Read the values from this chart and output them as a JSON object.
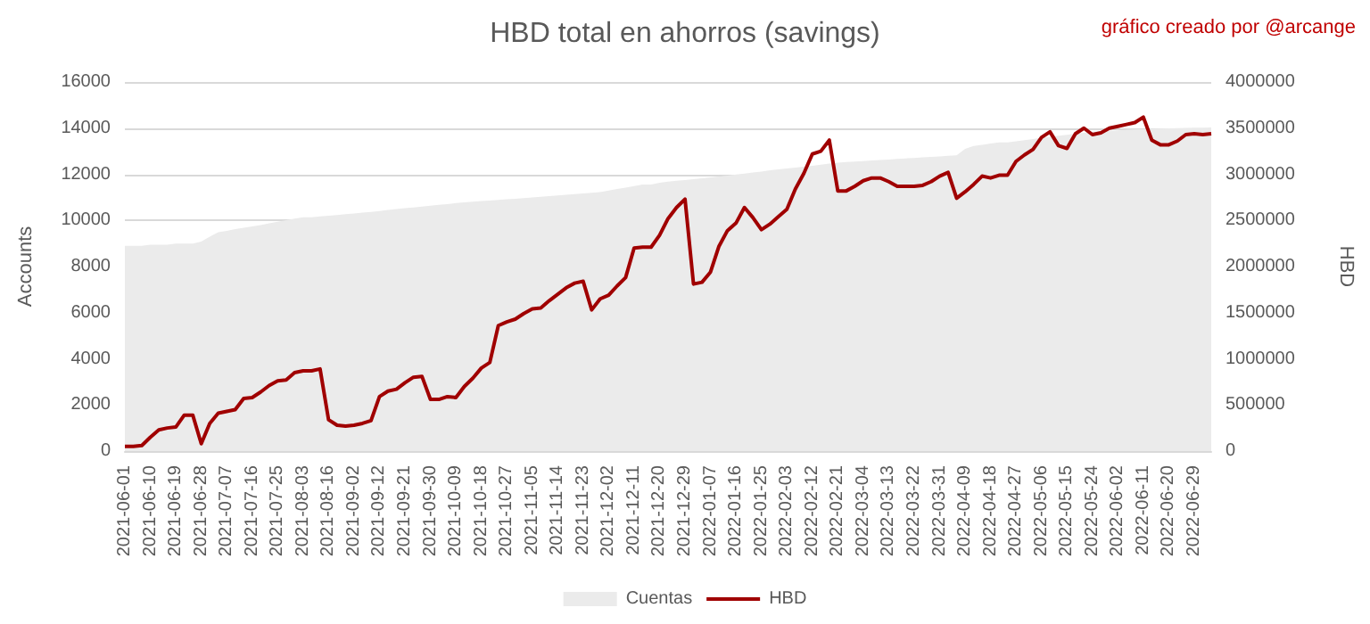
{
  "chart_data": {
    "type": "line",
    "title": "HBD total en ahorros (savings)",
    "annotations": [
      "gráfico creado por @arcange"
    ],
    "ylabel": "Accounts",
    "y2label": "HBD",
    "categories": [
      "2021-06-01",
      null,
      null,
      "2021-06-10",
      null,
      null,
      "2021-06-19",
      null,
      null,
      "2021-06-28",
      null,
      null,
      "2021-07-07",
      null,
      null,
      "2021-07-16",
      null,
      null,
      "2021-07-25",
      null,
      null,
      "2021-08-03",
      null,
      null,
      "2021-08-16",
      null,
      null,
      "2021-09-02",
      null,
      null,
      "2021-09-12",
      null,
      null,
      "2021-09-21",
      null,
      null,
      "2021-09-30",
      null,
      null,
      "2021-10-09",
      null,
      null,
      "2021-10-18",
      null,
      null,
      "2021-10-27",
      null,
      null,
      "2021-11-05",
      null,
      null,
      "2021-11-14",
      null,
      null,
      "2021-11-23",
      null,
      null,
      "2021-12-02",
      null,
      null,
      "2021-12-11",
      null,
      null,
      "2021-12-20",
      null,
      null,
      "2021-12-29",
      null,
      null,
      "2022-01-07",
      null,
      null,
      "2022-01-16",
      null,
      null,
      "2022-01-25",
      null,
      null,
      "2022-02-03",
      null,
      null,
      "2022-02-12",
      null,
      null,
      "2022-02-21",
      null,
      null,
      "2022-03-04",
      null,
      null,
      "2022-03-13",
      null,
      null,
      "2022-03-22",
      null,
      null,
      "2022-03-31",
      null,
      null,
      "2022-04-09",
      null,
      null,
      "2022-04-18",
      null,
      null,
      "2022-04-27",
      null,
      null,
      "2022-05-06",
      null,
      null,
      "2022-05-15",
      null,
      null,
      "2022-05-24",
      null,
      null,
      "2022-06-02",
      null,
      null,
      "2022-06-11",
      null,
      null,
      "2022-06-20",
      null,
      null,
      "2022-06-29",
      null,
      null
    ],
    "series": [
      {
        "name": "Cuentas",
        "type": "area",
        "color": "#ebebeb",
        "values": [
          8900,
          8900,
          8900,
          8950,
          8950,
          8950,
          9000,
          9000,
          9000,
          9080,
          9290,
          9490,
          9550,
          9620,
          9680,
          9740,
          9800,
          9870,
          9940,
          10010,
          10080,
          10140,
          10140,
          10170,
          10200,
          10230,
          10270,
          10300,
          10340,
          10370,
          10410,
          10450,
          10490,
          10530,
          10560,
          10600,
          10640,
          10680,
          10710,
          10750,
          10780,
          10810,
          10840,
          10860,
          10890,
          10920,
          10940,
          10970,
          11000,
          11020,
          11050,
          11080,
          11110,
          11140,
          11170,
          11200,
          11230,
          11290,
          11360,
          11420,
          11490,
          11560,
          11560,
          11630,
          11680,
          11720,
          11750,
          11790,
          11830,
          11860,
          11900,
          11940,
          11990,
          12030,
          12080,
          12120,
          12170,
          12210,
          12250,
          12290,
          12330,
          12370,
          12420,
          12460,
          12500,
          12530,
          12550,
          12570,
          12600,
          12620,
          12640,
          12670,
          12690,
          12710,
          12730,
          12750,
          12770,
          12800,
          12820,
          13100,
          13230,
          13280,
          13330,
          13380,
          13380,
          13430,
          13480,
          13530,
          13580,
          13620,
          13670,
          13710,
          13760,
          13800,
          13850,
          13870,
          13880,
          13900,
          13920,
          13940,
          13950,
          13970,
          13980,
          13990,
          14000,
          14010,
          14020,
          14020,
          14030
        ]
      },
      {
        "name": "HBD",
        "axis": "y2",
        "color": "#a00000",
        "values": [
          50000,
          50000,
          60000,
          150000,
          230000,
          250000,
          260000,
          390000,
          390000,
          80000,
          300000,
          410000,
          430000,
          450000,
          570000,
          580000,
          640000,
          710000,
          760000,
          770000,
          850000,
          870000,
          870000,
          890000,
          340000,
          280000,
          270000,
          280000,
          300000,
          330000,
          590000,
          650000,
          670000,
          740000,
          800000,
          810000,
          560000,
          560000,
          590000,
          580000,
          700000,
          790000,
          900000,
          960000,
          1360000,
          1400000,
          1430000,
          1490000,
          1540000,
          1550000,
          1630000,
          1700000,
          1770000,
          1820000,
          1840000,
          1530000,
          1650000,
          1690000,
          1790000,
          1880000,
          2200000,
          2210000,
          2210000,
          2340000,
          2520000,
          2640000,
          2730000,
          1810000,
          1830000,
          1940000,
          2220000,
          2390000,
          2470000,
          2640000,
          2530000,
          2400000,
          2460000,
          2540000,
          2620000,
          2840000,
          3010000,
          3220000,
          3250000,
          3370000,
          2820000,
          2820000,
          2870000,
          2930000,
          2960000,
          2960000,
          2920000,
          2870000,
          2870000,
          2870000,
          2880000,
          2920000,
          2980000,
          3020000,
          2740000,
          2810000,
          2890000,
          2980000,
          2960000,
          2990000,
          2990000,
          3140000,
          3210000,
          3270000,
          3400000,
          3460000,
          3310000,
          3280000,
          3440000,
          3500000,
          3430000,
          3450000,
          3500000,
          3520000,
          3540000,
          3560000,
          3620000,
          3370000,
          3320000,
          3320000,
          3360000,
          3430000,
          3440000,
          3430000,
          3440000
        ]
      }
    ],
    "ylim": [
      0,
      16000
    ],
    "yticks": [
      0,
      2000,
      4000,
      6000,
      8000,
      10000,
      12000,
      14000,
      16000
    ],
    "y2lim": [
      0,
      4000000
    ],
    "y2ticks": [
      0,
      500000,
      1000000,
      1500000,
      2000000,
      2500000,
      3000000,
      3500000,
      4000000
    ],
    "grid": "y",
    "legend": "bottom"
  }
}
